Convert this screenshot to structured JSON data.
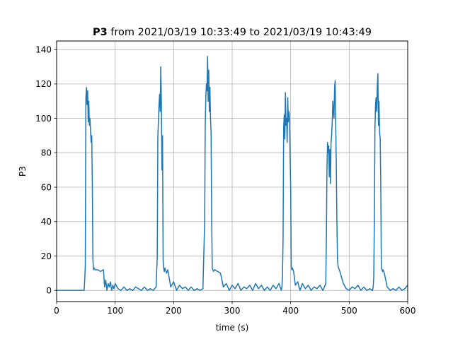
{
  "chart_data": {
    "type": "line",
    "title_bold": "P3",
    "title_rest": " from 2021/03/19 10:33:49 to 2021/03/19 10:43:49",
    "xlabel": "time (s)",
    "ylabel": "P3",
    "xlim": [
      0,
      600
    ],
    "ylim": [
      -6.5,
      145
    ],
    "xticks": [
      0,
      100,
      200,
      300,
      400,
      500,
      600
    ],
    "yticks": [
      0,
      20,
      40,
      60,
      80,
      100,
      120,
      140
    ],
    "grid": true,
    "line_color": "#1f77b4",
    "series": [
      {
        "x": [
          0,
          47,
          48,
          49,
          50,
          51,
          52,
          53,
          54,
          55,
          56,
          57,
          58,
          59,
          60,
          61,
          62,
          63,
          64,
          66,
          70,
          75,
          80,
          82,
          84,
          86,
          88,
          90,
          92,
          94,
          96,
          98,
          100,
          105,
          110,
          115,
          120,
          125,
          130,
          135,
          140,
          145,
          150,
          155,
          160,
          165,
          170,
          172,
          173,
          174,
          175,
          176,
          177,
          178,
          179,
          180,
          181,
          182,
          183,
          184,
          185,
          186,
          187,
          188,
          190,
          195,
          200,
          205,
          210,
          215,
          220,
          225,
          230,
          235,
          240,
          245,
          250,
          253,
          254,
          255,
          256,
          257,
          258,
          259,
          260,
          261,
          262,
          263,
          264,
          265,
          266,
          267,
          268,
          270,
          275,
          280,
          285,
          290,
          295,
          300,
          305,
          310,
          315,
          320,
          325,
          330,
          335,
          340,
          345,
          350,
          355,
          360,
          365,
          370,
          375,
          380,
          384,
          385,
          386,
          387,
          388,
          389,
          390,
          391,
          392,
          393,
          394,
          395,
          396,
          397,
          398,
          399,
          400,
          401,
          402,
          403,
          404,
          405,
          408,
          412,
          416,
          420,
          425,
          430,
          435,
          440,
          445,
          450,
          455,
          460,
          461,
          462,
          463,
          464,
          465,
          466,
          467,
          468,
          469,
          470,
          471,
          472,
          473,
          474,
          475,
          476,
          477,
          478,
          479,
          480,
          481,
          482,
          483,
          485,
          490,
          495,
          500,
          505,
          510,
          515,
          520,
          525,
          530,
          535,
          540,
          541,
          542,
          543,
          544,
          545,
          546,
          547,
          548,
          549,
          550,
          551,
          552,
          553,
          554,
          555,
          556,
          557,
          558,
          560,
          565,
          570,
          575,
          580,
          585,
          590,
          595,
          600
        ],
        "y": [
          0,
          0,
          6,
          14,
          112,
          118,
          108,
          116,
          98,
          110,
          96,
          100,
          92,
          86,
          90,
          62,
          18,
          12,
          13,
          12,
          12,
          11,
          12,
          2,
          6,
          0,
          4,
          2,
          5,
          0,
          3,
          1,
          4,
          1,
          0,
          2,
          0,
          1,
          0,
          2,
          1,
          0,
          2,
          0,
          1,
          0,
          2,
          20,
          90,
          98,
          108,
          114,
          104,
          130,
          110,
          70,
          90,
          18,
          13,
          11,
          13,
          12,
          11,
          10,
          12,
          2,
          5,
          0,
          3,
          1,
          2,
          0,
          2,
          0,
          1,
          0,
          1,
          40,
          96,
          112,
          120,
          116,
          136,
          110,
          128,
          104,
          118,
          100,
          92,
          40,
          13,
          12,
          11,
          12,
          11,
          10,
          2,
          4,
          0,
          3,
          1,
          4,
          0,
          2,
          1,
          3,
          0,
          4,
          1,
          3,
          0,
          2,
          0,
          3,
          1,
          4,
          0,
          2,
          8,
          30,
          95,
          102,
          88,
          115,
          96,
          100,
          86,
          112,
          98,
          104,
          100,
          78,
          60,
          14,
          12,
          13,
          12,
          11,
          3,
          5,
          0,
          4,
          1,
          3,
          0,
          2,
          1,
          3,
          0,
          4,
          30,
          70,
          86,
          80,
          84,
          66,
          82,
          62,
          86,
          90,
          98,
          110,
          104,
          100,
          118,
          122,
          96,
          72,
          40,
          18,
          14,
          13,
          12,
          10,
          4,
          1,
          0,
          2,
          1,
          3,
          0,
          2,
          0,
          1,
          0,
          2,
          8,
          40,
          94,
          108,
          112,
          104,
          118,
          126,
          96,
          110,
          92,
          88,
          60,
          13,
          12,
          11,
          12,
          10,
          2,
          0,
          1,
          0,
          2,
          0,
          1,
          3
        ]
      }
    ]
  }
}
